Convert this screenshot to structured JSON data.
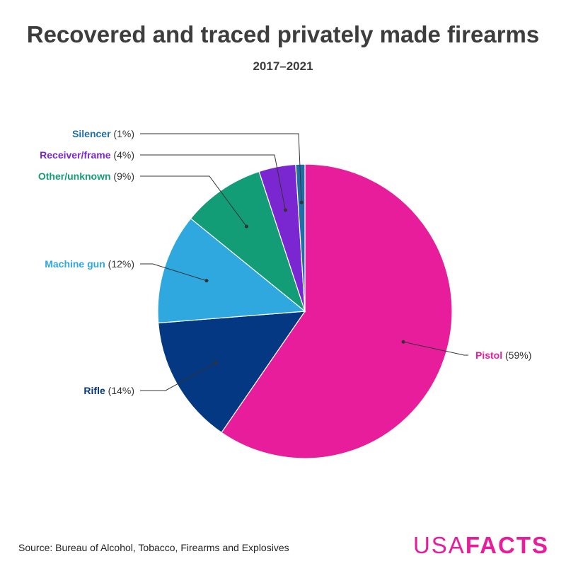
{
  "header": {
    "title": "Recovered and traced privately made firearms",
    "subtitle": "2017–2021"
  },
  "chart_data": {
    "type": "pie",
    "title": "Recovered and traced privately made firearms",
    "subtitle": "2017–2021",
    "slices": [
      {
        "name": "Pistol",
        "value": 59,
        "label": "(59%)",
        "color": "#e81d9b"
      },
      {
        "name": "Rifle",
        "value": 14,
        "label": "(14%)",
        "color": "#043883"
      },
      {
        "name": "Machine gun",
        "value": 12,
        "label": "(12%)",
        "color": "#2fa8e0"
      },
      {
        "name": "Other/unknown",
        "value": 9,
        "label": "(9%)",
        "color": "#139d77"
      },
      {
        "name": "Receiver/frame",
        "value": 4,
        "label": "(4%)",
        "color": "#7b27d1"
      },
      {
        "name": "Silencer",
        "value": 1,
        "label": "(1%)",
        "color": "#1f6ea6"
      }
    ]
  },
  "footer": {
    "source": "Source: Bureau of Alcohol, Tobacco, Firearms and Explosives",
    "logo_usa": "USA",
    "logo_facts": "FACTS",
    "logo_color": "#e81d9b"
  }
}
